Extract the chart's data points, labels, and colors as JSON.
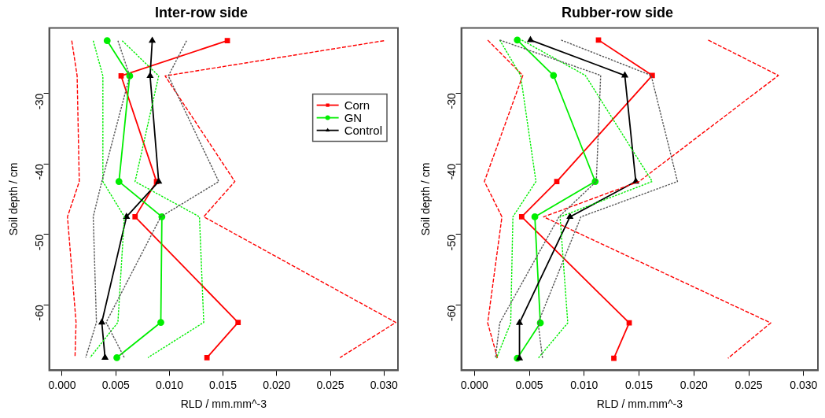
{
  "chart_data": [
    {
      "type": "line",
      "title": "Inter-row side",
      "xlabel": "RLD / mm.mm^-3",
      "ylabel": "Soil depth / cm",
      "xlim": [
        -0.0012,
        0.0313
      ],
      "ylim": [
        -69.3,
        -20.7
      ],
      "xticks": [
        {
          "value": 0,
          "label": "0.000"
        },
        0.005,
        {
          "value": 0.01,
          "label": "0.010"
        },
        0.015,
        {
          "value": 0.02,
          "label": "0.020"
        },
        0.025,
        {
          "value": 0.03,
          "label": "0.030"
        }
      ],
      "yticks": [
        -30,
        -40,
        -50,
        -60
      ],
      "grid": false,
      "legend": "top right",
      "series": [
        {
          "name": "Corn",
          "color": "#ff0000",
          "marker": "square",
          "line_style": "solid",
          "x": [
            0.0154,
            0.0055,
            0.0088,
            0.0068,
            0.0164,
            0.0135
          ],
          "values": [
            -22.5,
            -27.5,
            -42.5,
            -47.5,
            -62.5,
            -67.5
          ]
        },
        {
          "name": "GN",
          "color": "#00ee00",
          "marker": "circle",
          "line_style": "solid",
          "x": [
            0.0042,
            0.0063,
            0.0053,
            0.0093,
            0.0092,
            0.0051
          ],
          "values": [
            -22.5,
            -27.5,
            -42.5,
            -47.5,
            -62.5,
            -67.5
          ]
        },
        {
          "name": "Control",
          "color": "#000000",
          "marker": "triangle",
          "line_style": "solid",
          "x": [
            0.0084,
            0.0082,
            0.009,
            0.006,
            0.0037,
            0.004
          ],
          "values": [
            -22.5,
            -27.5,
            -42.5,
            -47.5,
            -62.5,
            -67.5
          ]
        },
        {
          "color": "#ff0000",
          "marker": "none",
          "line_style": "dashed",
          "x": [
            0.0009,
            0.0014,
            0.0016,
            0.0005,
            0.0013,
            0.0012
          ],
          "values": [
            -22.5,
            -27.5,
            -42.5,
            -47.5,
            -62.5,
            -67.5
          ]
        },
        {
          "color": "#ff0000",
          "marker": "none",
          "line_style": "dashed",
          "x": [
            0.03,
            0.0096,
            0.0161,
            0.0132,
            0.0311,
            0.0259
          ],
          "values": [
            -22.5,
            -27.5,
            -42.5,
            -47.5,
            -62.5,
            -67.5
          ]
        },
        {
          "color": "#00ee00",
          "marker": "none",
          "line_style": "dotted",
          "x": [
            0.0029,
            0.0038,
            0.0038,
            0.0058,
            0.0052,
            0.0026
          ],
          "values": [
            -22.5,
            -27.5,
            -42.5,
            -47.5,
            -62.5,
            -67.5
          ]
        },
        {
          "color": "#00ee00",
          "marker": "none",
          "line_style": "dotted",
          "x": [
            0.0056,
            0.009,
            0.0068,
            0.0128,
            0.0132,
            0.008
          ],
          "values": [
            -22.5,
            -27.5,
            -42.5,
            -47.5,
            -62.5,
            -67.5
          ]
        },
        {
          "color": "#555555",
          "marker": "none",
          "line_style": "dotted",
          "x": [
            0.0052,
            0.0063,
            0.0037,
            0.0029,
            0.0032,
            0.0022
          ],
          "values": [
            -22.5,
            -27.5,
            -42.5,
            -47.5,
            -62.5,
            -67.5
          ]
        },
        {
          "color": "#555555",
          "marker": "none",
          "line_style": "dotted",
          "x": [
            0.0116,
            0.0099,
            0.0146,
            0.0092,
            0.0041,
            0.0058
          ],
          "values": [
            -22.5,
            -27.5,
            -42.5,
            -47.5,
            -62.5,
            -67.5
          ]
        }
      ]
    },
    {
      "type": "line",
      "title": "Rubber-row side",
      "xlabel": "RLD / mm.mm^-3",
      "ylabel": "Soil depth / cm",
      "xlim": [
        -0.0012,
        0.0313
      ],
      "ylim": [
        -69.2,
        -20.8
      ],
      "xticks": [
        {
          "value": 0,
          "label": "0.000"
        },
        0.005,
        {
          "value": 0.01,
          "label": "0.010"
        },
        0.015,
        {
          "value": 0.02,
          "label": "0.020"
        },
        0.025,
        {
          "value": 0.03,
          "label": "0.030"
        }
      ],
      "yticks": [
        -30,
        -40,
        -50,
        -60
      ],
      "grid": false,
      "series": [
        {
          "color": "#ff0000",
          "marker": "square",
          "line_style": "solid",
          "x": [
            0.0113,
            0.0162,
            0.0075,
            0.0043,
            0.0141,
            0.0127
          ],
          "values": [
            -22.5,
            -27.5,
            -42.5,
            -47.5,
            -62.5,
            -67.5
          ]
        },
        {
          "color": "#00ee00",
          "marker": "circle",
          "line_style": "solid",
          "x": [
            0.0039,
            0.0072,
            0.011,
            0.0055,
            0.006,
            0.0039
          ],
          "values": [
            -22.5,
            -27.5,
            -42.5,
            -47.5,
            -62.5,
            -67.5
          ]
        },
        {
          "color": "#000000",
          "marker": "triangle",
          "line_style": "solid",
          "x": [
            0.0051,
            0.0137,
            0.0147,
            0.0087,
            0.0041,
            0.0041
          ],
          "values": [
            -22.5,
            -27.5,
            -42.5,
            -47.5,
            -62.5,
            -67.5
          ]
        },
        {
          "color": "#ff0000",
          "marker": "none",
          "line_style": "dashed",
          "x": [
            0.0012,
            0.0044,
            0.0009,
            0.0025,
            0.0012,
            0.0021
          ],
          "values": [
            -22.5,
            -27.5,
            -42.5,
            -47.5,
            -62.5,
            -67.5
          ]
        },
        {
          "color": "#ff0000",
          "marker": "none",
          "line_style": "dashed",
          "x": [
            0.0213,
            0.0277,
            0.015,
            0.0063,
            0.027,
            0.0231
          ],
          "values": [
            -22.5,
            -27.5,
            -42.5,
            -47.5,
            -62.5,
            -67.5
          ]
        },
        {
          "color": "#00ee00",
          "marker": "none",
          "line_style": "dotted",
          "x": [
            0.0023,
            0.0042,
            0.0056,
            0.0035,
            0.0033,
            0.002
          ],
          "values": [
            -22.5,
            -27.5,
            -42.5,
            -47.5,
            -62.5,
            -67.5
          ]
        },
        {
          "color": "#00ee00",
          "marker": "none",
          "line_style": "dotted",
          "x": [
            0.0043,
            0.0101,
            0.0162,
            0.0078,
            0.0085,
            0.0058
          ],
          "values": [
            -22.5,
            -27.5,
            -42.5,
            -47.5,
            -62.5,
            -67.5
          ]
        },
        {
          "color": "#555555",
          "marker": "none",
          "line_style": "dotted",
          "x": [
            0.0023,
            0.0115,
            0.0111,
            0.0077,
            0.0023,
            0.0019
          ],
          "values": [
            -22.5,
            -27.5,
            -42.5,
            -47.5,
            -62.5,
            -67.5
          ]
        },
        {
          "color": "#555555",
          "marker": "none",
          "line_style": "dotted",
          "x": [
            0.0079,
            0.0161,
            0.0185,
            0.0097,
            0.0058,
            0.0062
          ],
          "values": [
            -22.5,
            -27.5,
            -42.5,
            -47.5,
            -62.5,
            -67.5
          ]
        }
      ]
    }
  ]
}
